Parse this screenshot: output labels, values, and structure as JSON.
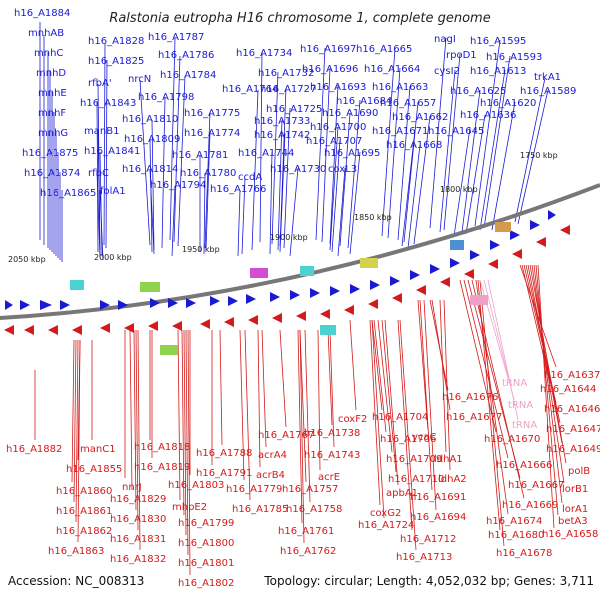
{
  "title": "Ralstonia eutropha H16 chromosome 1, complete genome",
  "footer": {
    "accession": "Accession: NC_008313",
    "summary": "Topology: circular; Length: 4,052,032 bp; Genes: 3,711"
  },
  "ticks": [
    "2050 kbp",
    "2000 kbp",
    "1950 kbp",
    "1900 kbp",
    "1850 kbp",
    "1800 kbp",
    "1750 kbp"
  ],
  "colors": {
    "forward": "#1a1ad6",
    "reverse": "#d41a1a",
    "rna": "#f0a0c8",
    "backbone": "#777777"
  },
  "genes_top": [
    "h16_A1884",
    "mnhAB",
    "mnhC",
    "mnhD",
    "mnhE",
    "mnhF",
    "mnhG",
    "h16_A1875",
    "h16_A1874",
    "h16_A1865",
    "h16_A1828",
    "h16_A1825",
    "rfbA'",
    "h16_A1843",
    "manB1",
    "h16_A1841",
    "rfbC",
    "folA1",
    "h16_A1787",
    "h16_A1786",
    "nrcN",
    "h16_A1784",
    "h16_A1798",
    "h16_A1810",
    "h16_A1809",
    "h16_A1814",
    "h16_A1794",
    "h16_A1775",
    "h16_A1774",
    "h16_A1781",
    "h16_A1780",
    "h16_A1766",
    "ccdA",
    "h16_A1764",
    "h16_A1734",
    "h16_A1732",
    "h16_A1727",
    "h16_A1725",
    "h16_A1733",
    "h16_A1742",
    "h16_A1744",
    "h16_A1730",
    "h16_A1697",
    "h16_A1696",
    "h16_A1693",
    "h16_A1690",
    "h16_A1684",
    "h16_A1700",
    "h16_A1707",
    "h16_A1695",
    "coxL3",
    "h16_A1665",
    "h16_A1664",
    "h16_A1663",
    "h16_A1657",
    "h16_A1662",
    "h16_A1671",
    "h16_A1668",
    "nagI",
    "rpoD1",
    "cysI2",
    "h16_A1595",
    "h16_A1593",
    "h16_A1613",
    "h16_A1625",
    "h16_A1636",
    "h16_A1645",
    "h16_A1620",
    "trkA1",
    "h16_A1589"
  ],
  "genes_bottom": [
    "h16_A1882",
    "manC1",
    "h16_A1855",
    "h16_A1860",
    "h16_A1861",
    "h16_A1862",
    "h16_A1863",
    "nnrJ",
    "h16_A1818",
    "h16_A1819",
    "h16_A1829",
    "h16_A1830",
    "h16_A1831",
    "h16_A1832",
    "h16_A1788",
    "h16_A1791",
    "h16_A1803",
    "mhpE2",
    "h16_A1799",
    "h16_A1800",
    "h16_A1801",
    "h16_A1802",
    "h16_A1767",
    "acrA4",
    "acrB4",
    "h16_A1779",
    "h16_A1785",
    "h16_A1738",
    "h16_A1743",
    "acrE",
    "h16_A1757",
    "h16_A1758",
    "h16_A1761",
    "h16_A1762",
    "coxF2",
    "h16_A1704",
    "h16_A1706",
    "h16_A1709",
    "h16_A1710",
    "apbA1",
    "coxG2",
    "h16_A1724",
    "h16_A1712",
    "h16_A1713",
    "h16_A1676",
    "h16_A1677",
    "ycaC",
    "ldhA1",
    "ldhA2",
    "h16_A1691",
    "h16_A1694",
    "h16_A1670",
    "h16_A1666",
    "h16_A1667",
    "h16_A1669",
    "h16_A1674",
    "h16_A1680",
    "h16_A1678",
    "h16_A1637",
    "h16_A1644",
    "h16_A1646",
    "h16_A1647",
    "h16_A1649",
    "polB",
    "lorB1",
    "lorA1",
    "betA3",
    "h16_A1658"
  ],
  "rna_labels": [
    "tRNA",
    "tRNA",
    "tRNA"
  ]
}
